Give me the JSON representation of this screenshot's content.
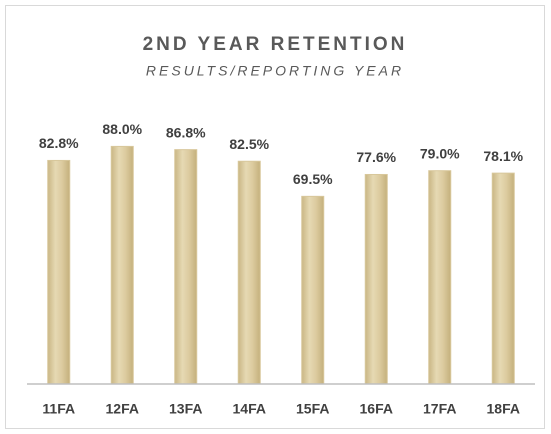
{
  "chart_data": {
    "type": "bar",
    "title": "2ND YEAR RETENTION",
    "subtitle": "RESULTS/REPORTING YEAR",
    "categories": [
      "11FA",
      "12FA",
      "13FA",
      "14FA",
      "15FA",
      "16FA",
      "17FA",
      "18FA"
    ],
    "values": [
      82.8,
      88.0,
      86.8,
      82.5,
      69.5,
      77.6,
      79.0,
      78.1
    ],
    "value_labels": [
      "82.8%",
      "88.0%",
      "86.8%",
      "82.5%",
      "69.5%",
      "77.6%",
      "79.0%",
      "78.1%"
    ],
    "color": "#d8c79b",
    "ylim": [
      0,
      90
    ],
    "grid": false
  }
}
